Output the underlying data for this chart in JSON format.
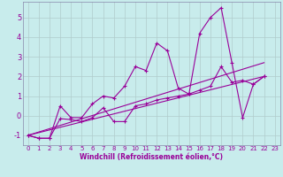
{
  "xlabel": "Windchill (Refroidissement éolien,°C)",
  "bg_color": "#c8ecec",
  "line_color": "#990099",
  "grid_color": "#b0cccc",
  "spine_color": "#8888aa",
  "xlim": [
    -0.5,
    23.5
  ],
  "ylim": [
    -1.5,
    5.8
  ],
  "yticks": [
    -1,
    0,
    1,
    2,
    3,
    4,
    5
  ],
  "xticks": [
    0,
    1,
    2,
    3,
    4,
    5,
    6,
    7,
    8,
    9,
    10,
    11,
    12,
    13,
    14,
    15,
    16,
    17,
    18,
    19,
    20,
    21,
    22,
    23
  ],
  "series1_x": [
    0,
    1,
    2,
    3,
    4,
    5,
    6,
    7,
    8,
    9,
    10,
    11,
    12,
    13,
    14,
    15,
    16,
    17,
    18,
    19,
    20,
    21,
    22
  ],
  "series1_y": [
    -1.0,
    -1.15,
    -1.15,
    0.5,
    -0.1,
    -0.1,
    0.6,
    1.0,
    0.9,
    1.5,
    2.5,
    2.3,
    3.7,
    3.3,
    1.4,
    1.1,
    4.2,
    5.0,
    5.5,
    2.7,
    -0.1,
    1.6,
    2.0
  ],
  "series2_x": [
    0,
    1,
    2,
    3,
    4,
    5,
    6,
    7,
    8,
    9,
    10,
    11,
    12,
    13,
    14,
    15,
    16,
    17,
    18,
    19,
    20,
    21,
    22
  ],
  "series2_y": [
    -1.0,
    -1.15,
    -1.15,
    -0.15,
    -0.2,
    -0.3,
    -0.1,
    0.4,
    -0.3,
    -0.3,
    0.5,
    0.6,
    0.8,
    0.9,
    1.0,
    1.1,
    1.3,
    1.5,
    2.5,
    1.7,
    1.8,
    1.6,
    2.0
  ],
  "series3_x": [
    0,
    22
  ],
  "series3_y": [
    -1.0,
    2.7
  ],
  "series4_x": [
    0,
    22
  ],
  "series4_y": [
    -1.0,
    2.0
  ]
}
